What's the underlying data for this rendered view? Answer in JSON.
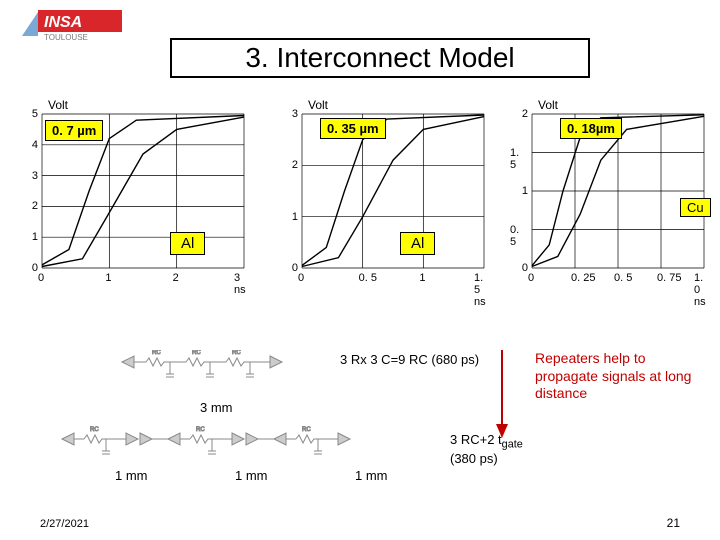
{
  "logo": {
    "text1": "INSA",
    "text2": "TOULOUSE",
    "accent": "#d9262a",
    "stripe": "#7aa9d6"
  },
  "title": "3. Interconnect Model",
  "charts": [
    {
      "tech": "0. 7 µm",
      "ylabel": "Volt",
      "xmax_label": "3 ns",
      "ylim": [
        0,
        5
      ],
      "ytick_step": 1,
      "xlim": [
        0,
        3
      ],
      "xtick_step": 1,
      "annot": "Al",
      "curve_near": [
        [
          0,
          0.1
        ],
        [
          0.4,
          0.6
        ],
        [
          0.7,
          2.5
        ],
        [
          1.0,
          4.2
        ],
        [
          1.4,
          4.8
        ],
        [
          3.0,
          4.95
        ]
      ],
      "curve_far": [
        [
          0,
          0.05
        ],
        [
          0.6,
          0.3
        ],
        [
          1.0,
          1.8
        ],
        [
          1.5,
          3.7
        ],
        [
          2.0,
          4.5
        ],
        [
          3.0,
          4.9
        ]
      ],
      "grid_color": "#000000",
      "bg": "#ffffff"
    },
    {
      "tech": "0. 35 µm",
      "ylabel": "Volt",
      "xmax_label": "1. 5 ns",
      "ylim": [
        0,
        3
      ],
      "ytick_step": 1,
      "xlim": [
        0,
        1.5
      ],
      "xtick_step": 0.5,
      "annot": "Al",
      "curve_near": [
        [
          0,
          0.05
        ],
        [
          0.2,
          0.4
        ],
        [
          0.35,
          1.5
        ],
        [
          0.5,
          2.5
        ],
        [
          0.7,
          2.9
        ],
        [
          1.5,
          2.98
        ]
      ],
      "curve_far": [
        [
          0,
          0.03
        ],
        [
          0.3,
          0.2
        ],
        [
          0.5,
          1.0
        ],
        [
          0.75,
          2.1
        ],
        [
          1.0,
          2.7
        ],
        [
          1.5,
          2.95
        ]
      ],
      "grid_color": "#000000",
      "bg": "#ffffff"
    },
    {
      "tech": "0. 18µm",
      "ylabel": "Volt",
      "xmax_label": "1. 0 ns",
      "ylim": [
        0,
        2
      ],
      "ytick_step": 0.5,
      "xlim": [
        0,
        1.0
      ],
      "xtick_step": 0.25,
      "annot": "Cu",
      "curve_near": [
        [
          0,
          0.03
        ],
        [
          0.1,
          0.3
        ],
        [
          0.18,
          1.0
        ],
        [
          0.28,
          1.7
        ],
        [
          0.4,
          1.95
        ],
        [
          1.0,
          1.99
        ]
      ],
      "curve_far": [
        [
          0,
          0.02
        ],
        [
          0.15,
          0.15
        ],
        [
          0.28,
          0.7
        ],
        [
          0.4,
          1.4
        ],
        [
          0.55,
          1.8
        ],
        [
          1.0,
          1.97
        ]
      ],
      "grid_color": "#000000",
      "bg": "#ffffff"
    }
  ],
  "formula1": "3 Rx 3 C=9 RC (680 ps)",
  "formula2_line1": "3 RC+2 t",
  "formula2_sub": "gate",
  "formula2_line2": "(380 ps)",
  "repeaters_text": "Repeaters help to propagate signals at long distance",
  "segments": {
    "single": "3 mm",
    "repeat": "1 mm"
  },
  "footer": {
    "date": "2/27/2021",
    "page": "21"
  }
}
